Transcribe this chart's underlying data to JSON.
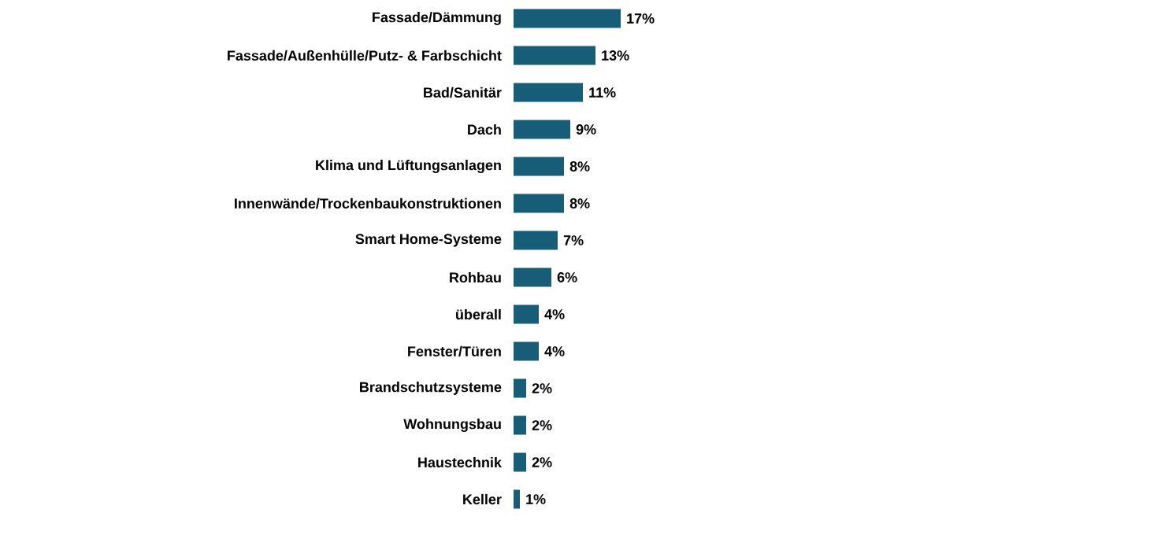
{
  "chart_data": {
    "type": "bar",
    "orientation": "horizontal",
    "color": "#175d78",
    "categories": [
      "Fassade/Dämmung",
      "Fassade/Außenhülle/Putz- & Farbschicht",
      "Bad/Sanitär",
      "Dach",
      "Klima und Lüftungsanlagen",
      "Innenwände/Trockenbaukonstruktionen",
      "Smart Home-Systeme",
      "Rohbau",
      "überall",
      "Fenster/Türen",
      "Brandschutzsysteme",
      "Wohnungsbau",
      "Haustechnik",
      "Keller"
    ],
    "values": [
      17,
      13,
      11,
      9,
      8,
      8,
      7,
      6,
      4,
      4,
      2,
      2,
      2,
      1
    ],
    "value_labels": [
      "17%",
      "13%",
      "11%",
      "9%",
      "8%",
      "8%",
      "7%",
      "6%",
      "4%",
      "4%",
      "2%",
      "2%",
      "2%",
      "1%"
    ]
  }
}
